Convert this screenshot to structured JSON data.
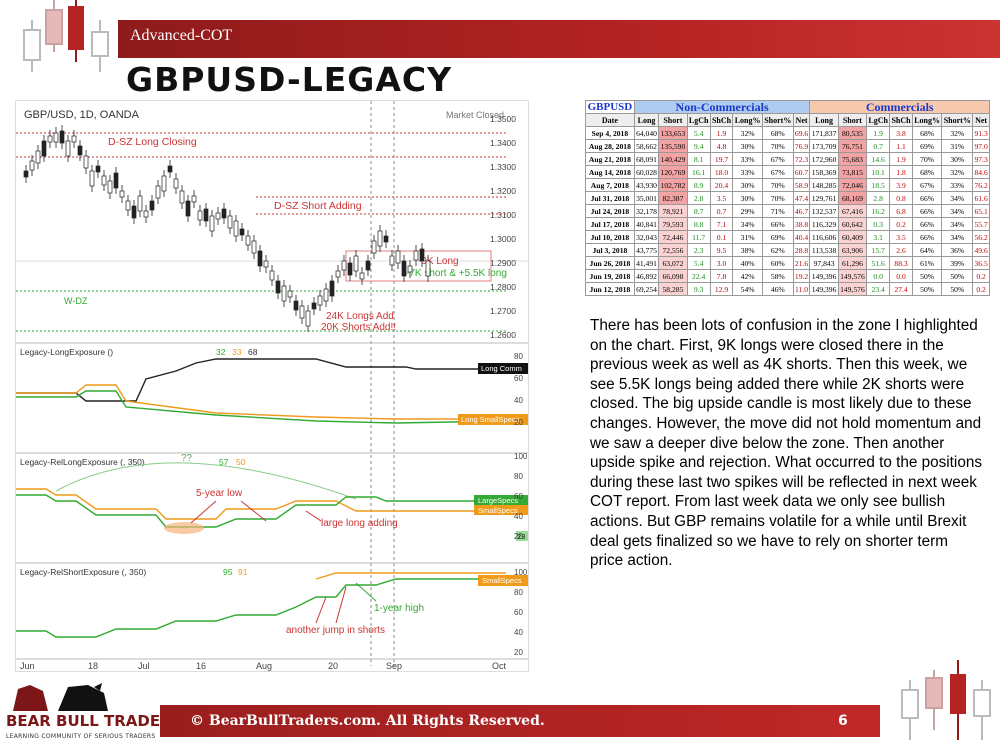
{
  "header": {
    "section": "Advanced-COT",
    "title": "GBPUSD-LEGACY"
  },
  "chart": {
    "symbol": "GBP/USD, 1D, OANDA",
    "market_status": "Market Closed",
    "price_ticks": [
      "1.3500",
      "1.3400",
      "1.3300",
      "1.3200",
      "1.3100",
      "1.3000",
      "1.2900",
      "1.2800",
      "1.2700",
      "1.2600"
    ],
    "annotations": {
      "dsz_long": "D-SZ Long Closing",
      "dsz_short": "D-SZ Short Adding",
      "wdz": "W-DZ",
      "long_cut": "-9K Long",
      "short_cut": "-7K short & +5.5K long",
      "longs_add": "24K Longs Add",
      "shorts_add": "20K Shorts Add!!"
    },
    "x_labels": [
      "Jun",
      "18",
      "Jul",
      "16",
      "Aug",
      "20",
      "Sep",
      "Oct"
    ],
    "panel1": {
      "title": "Legacy-LongExposure ()",
      "vals": [
        "32",
        "33",
        "68"
      ],
      "ticks": [
        "80",
        "60",
        "40",
        "20"
      ],
      "tag1": "Long Comm",
      "tag2": "Long SmallSpecs"
    },
    "panel2": {
      "title": "Legacy-RelLongExposure (, 350)",
      "vals": [
        "57",
        "50"
      ],
      "ticks": [
        "100",
        "80",
        "60",
        "40",
        "20"
      ],
      "tag1": "LargeSpecs",
      "tag2": "SmallSpecs",
      "tag3": "23",
      "q": "??",
      "note1": "5-year low",
      "note2": "large long adding"
    },
    "panel3": {
      "title": "Legacy-RelShortExposure (, 350)",
      "vals": [
        "95",
        "91"
      ],
      "ticks": [
        "100",
        "80",
        "60",
        "40",
        "20"
      ],
      "tag1": "SmallSpecs",
      "note1": "1-year high",
      "note2": "another jump in shorts"
    }
  },
  "table": {
    "symbol": "GBPUSD",
    "nc_title": "Non-Commercials",
    "c_title": "Commercials",
    "headers": [
      "Date",
      "Long",
      "Short",
      "LgCh",
      "ShCh",
      "Long%",
      "Short%",
      "Net",
      "Long",
      "Short",
      "LgCh",
      "ShCh",
      "Long%",
      "Short%",
      "Net"
    ],
    "rows": [
      [
        "Sep 4, 2018",
        "64,040",
        "133,653",
        "5.4",
        "1.9",
        "32%",
        "68%",
        "69.6",
        "171,837",
        "80,535",
        "1.9",
        "3.8",
        "68%",
        "32%",
        "91.3"
      ],
      [
        "Aug 28, 2018",
        "58,662",
        "135,590",
        "9.4",
        "4.8",
        "30%",
        "70%",
        "76.9",
        "173,709",
        "76,751",
        "0.7",
        "1.1",
        "69%",
        "31%",
        "97.0"
      ],
      [
        "Aug 21, 2018",
        "68,091",
        "140,429",
        "8.1",
        "19.7",
        "33%",
        "67%",
        "72.3",
        "172,960",
        "75,683",
        "14.6",
        "1.9",
        "70%",
        "30%",
        "97.3"
      ],
      [
        "Aug 14, 2018",
        "60,028",
        "120,769",
        "16.1",
        "18.0",
        "33%",
        "67%",
        "60.7",
        "158,369",
        "73,815",
        "10.1",
        "1.8",
        "68%",
        "32%",
        "84.6"
      ],
      [
        "Aug 7, 2018",
        "43,930",
        "102,782",
        "8.9",
        "20.4",
        "30%",
        "70%",
        "58.9",
        "148,285",
        "72,046",
        "18.5",
        "3.9",
        "67%",
        "33%",
        "76.2"
      ],
      [
        "Jul 31, 2018",
        "35,001",
        "82,387",
        "2.8",
        "3.5",
        "30%",
        "70%",
        "47.4",
        "129,761",
        "68,169",
        "2.8",
        "0.8",
        "66%",
        "34%",
        "61.6"
      ],
      [
        "Jul 24, 2018",
        "32,178",
        "78,921",
        "8.7",
        "0.7",
        "29%",
        "71%",
        "46.7",
        "132,537",
        "67,416",
        "16.2",
        "6.8",
        "66%",
        "34%",
        "65.1"
      ],
      [
        "Jul 17, 2018",
        "40,841",
        "79,593",
        "8.8",
        "7.1",
        "34%",
        "66%",
        "38.8",
        "116,329",
        "60,642",
        "0.3",
        "0.2",
        "66%",
        "34%",
        "55.7"
      ],
      [
        "Jul 10, 2018",
        "32,043",
        "72,446",
        "11.7",
        "0.1",
        "31%",
        "69%",
        "40.4",
        "116,606",
        "60,409",
        "3.1",
        "3.5",
        "66%",
        "34%",
        "56.2"
      ],
      [
        "Jul 3, 2018",
        "43,775",
        "72,556",
        "2.3",
        "9.5",
        "38%",
        "62%",
        "28.8",
        "113,538",
        "63,906",
        "15.7",
        "2.6",
        "64%",
        "36%",
        "49.6"
      ],
      [
        "Jun 26, 2018",
        "41,491",
        "63,072",
        "5.4",
        "3.0",
        "40%",
        "60%",
        "21.6",
        "97,843",
        "61,296",
        "51.6",
        "88.3",
        "61%",
        "39%",
        "36.5"
      ],
      [
        "Jun 19, 2018",
        "46,892",
        "66,098",
        "22.4",
        "7.8",
        "42%",
        "58%",
        "19.2",
        "149,396",
        "149,576",
        "0.0",
        "0.0",
        "50%",
        "50%",
        "0.2"
      ],
      [
        "Jun 12, 2018",
        "69,254",
        "58,285",
        "9.3",
        "12.9",
        "54%",
        "46%",
        "11.0",
        "149,396",
        "149,576",
        "23.4",
        "27.4",
        "50%",
        "50%",
        "0.2"
      ]
    ]
  },
  "commentary": "There has been lots of confusion in the zone I highlighted on the chart. First, 9K longs were closed there in the previous week as well as 4K shorts. Then this week, we see 5.5K longs being added there while 2K shorts were closed. The big upside candle is most likely due to these changes. However, the move did not hold momentum and we saw a deeper dive below the zone. Then another upside spike and rejection. What occurred to the positions during these last two spikes will be reflected in next week COT report. From last week data we only see bullish actions. But GBP remains volatile for a while until Brexit deal gets finalized so we have to rely on shorter term price action.",
  "footer": {
    "copyright": "© BearBullTraders.com. All Rights Reserved.",
    "page": "6",
    "brand": "BEAR BULL TRADERS",
    "tagline": "LEARNING COMMUNITY OF SERIOUS TRADERS"
  },
  "colors": {
    "accent": "#b52323",
    "long": "#222222",
    "small_specs": "#f09a1a",
    "large_specs": "#2f9e2f",
    "table_nc": "#aecbf0",
    "table_c": "#f6c9ae"
  }
}
